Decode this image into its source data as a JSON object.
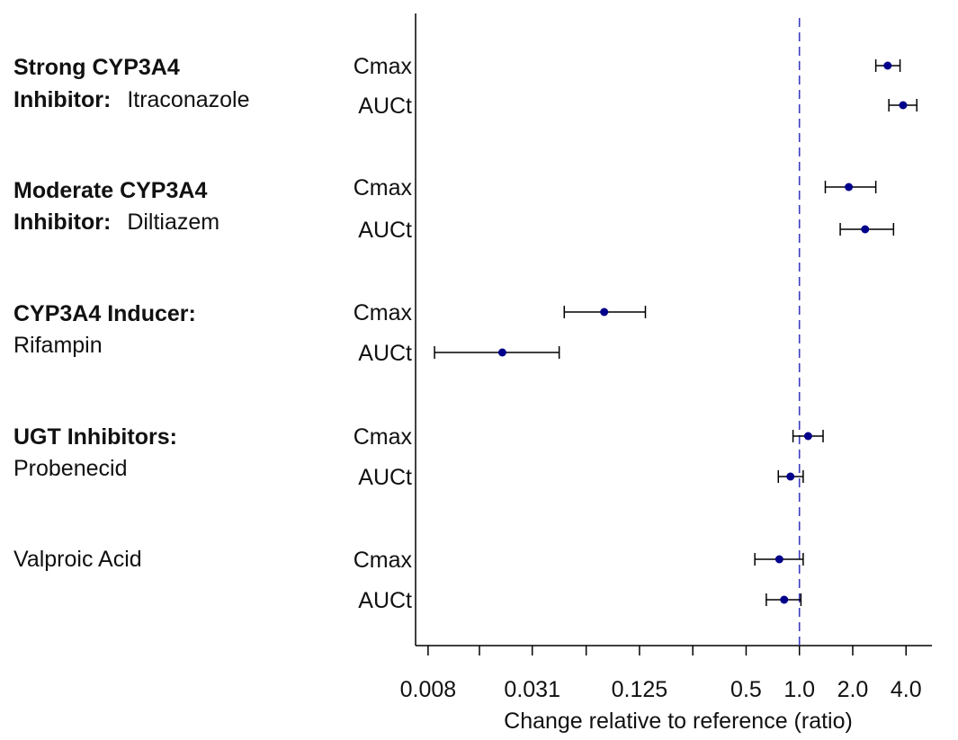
{
  "chart_data": {
    "type": "forest",
    "xlabel": "Change relative to reference (ratio)",
    "x_scale": "log2",
    "xlim": [
      0.0068,
      5.6
    ],
    "x_ticks": [
      0.008,
      0.0156,
      0.031,
      0.0625,
      0.125,
      0.25,
      0.5,
      1.0,
      2.0,
      4.0
    ],
    "x_tick_labels": [
      {
        "value": 0.008,
        "label": "0.008"
      },
      {
        "value": 0.031,
        "label": "0.031"
      },
      {
        "value": 0.125,
        "label": "0.125"
      },
      {
        "value": 0.5,
        "label": "0.5"
      },
      {
        "value": 1.0,
        "label": "1.0"
      },
      {
        "value": 2.0,
        "label": "2.0"
      },
      {
        "value": 4.0,
        "label": "4.0"
      }
    ],
    "reference_line": {
      "value": 1.0,
      "style": "dashed",
      "color": "#3b3bbf"
    },
    "point_color": "#00008b",
    "groups": [
      {
        "label_lines": [
          [
            {
              "text": "Strong CYP3A4",
              "bold": true
            }
          ],
          [
            {
              "text": "Inhibitor:",
              "bold": true
            },
            {
              "text": "Itraconazole",
              "bold": false
            }
          ]
        ],
        "rows": [
          {
            "label": "Cmax",
            "estimate": 3.15,
            "ci": [
              2.7,
              3.7
            ]
          },
          {
            "label": "AUCt",
            "estimate": 3.85,
            "ci": [
              3.2,
              4.6
            ]
          }
        ]
      },
      {
        "label_lines": [
          [
            {
              "text": "Moderate CYP3A4",
              "bold": true
            }
          ],
          [
            {
              "text": "Inhibitor:",
              "bold": true
            },
            {
              "text": "Diltiazem",
              "bold": false
            }
          ]
        ],
        "rows": [
          {
            "label": "Cmax",
            "estimate": 1.9,
            "ci": [
              1.4,
              2.7
            ]
          },
          {
            "label": "AUCt",
            "estimate": 2.35,
            "ci": [
              1.7,
              3.4
            ]
          }
        ]
      },
      {
        "label_lines": [
          [
            {
              "text": "CYP3A4 Inducer:",
              "bold": true
            }
          ],
          [
            {
              "text": "Rifampin",
              "bold": false
            }
          ]
        ],
        "rows": [
          {
            "label": "Cmax",
            "estimate": 0.079,
            "ci": [
              0.047,
              0.135
            ]
          },
          {
            "label": "AUCt",
            "estimate": 0.021,
            "ci": [
              0.0087,
              0.044
            ]
          }
        ]
      },
      {
        "label_lines": [
          [
            {
              "text": "UGT Inhibitors:",
              "bold": true
            }
          ],
          [
            {
              "text": "Probenecid",
              "bold": false
            }
          ]
        ],
        "rows": [
          {
            "label": "Cmax",
            "estimate": 1.12,
            "ci": [
              0.92,
              1.36
            ]
          },
          {
            "label": "AUCt",
            "estimate": 0.89,
            "ci": [
              0.76,
              1.05
            ]
          }
        ]
      },
      {
        "label_lines": [
          [
            {
              "text": "Valproic Acid",
              "bold": false
            }
          ]
        ],
        "rows": [
          {
            "label": "Cmax",
            "estimate": 0.77,
            "ci": [
              0.56,
              1.05
            ]
          },
          {
            "label": "AUCt",
            "estimate": 0.82,
            "ci": [
              0.65,
              1.02
            ]
          }
        ]
      }
    ]
  }
}
